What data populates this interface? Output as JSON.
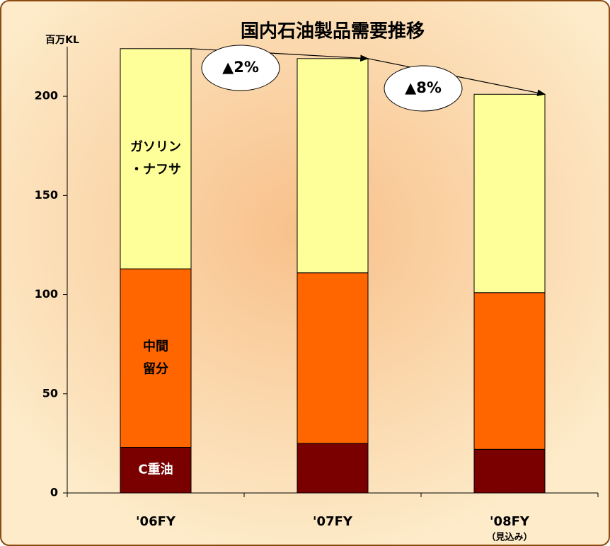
{
  "chart_data": {
    "type": "stacked_bar",
    "title": "国内石油製品需要推移",
    "y_axis_label": "百万KL",
    "categories": [
      "'06FY",
      "'07FY",
      "'08FY"
    ],
    "category_notes": [
      null,
      null,
      "（見込み）"
    ],
    "series": [
      {
        "name": [
          "C重油"
        ],
        "color": "#7a0000",
        "label_color": "#ffffff",
        "values": [
          23,
          25,
          22
        ]
      },
      {
        "name": [
          "中間",
          "留分"
        ],
        "color": "#ff6600",
        "label_color": "#000000",
        "values": [
          90,
          86,
          79
        ]
      },
      {
        "name": [
          "ガソリン",
          "・ナフサ"
        ],
        "color": "#ffff99",
        "label_color": "#000000",
        "values": [
          111,
          108,
          100
        ]
      }
    ],
    "ylim": [
      0,
      225
    ],
    "yticks": [
      0,
      50,
      100,
      150,
      200
    ],
    "annotations": [
      "▲2%",
      "▲8%"
    ]
  }
}
